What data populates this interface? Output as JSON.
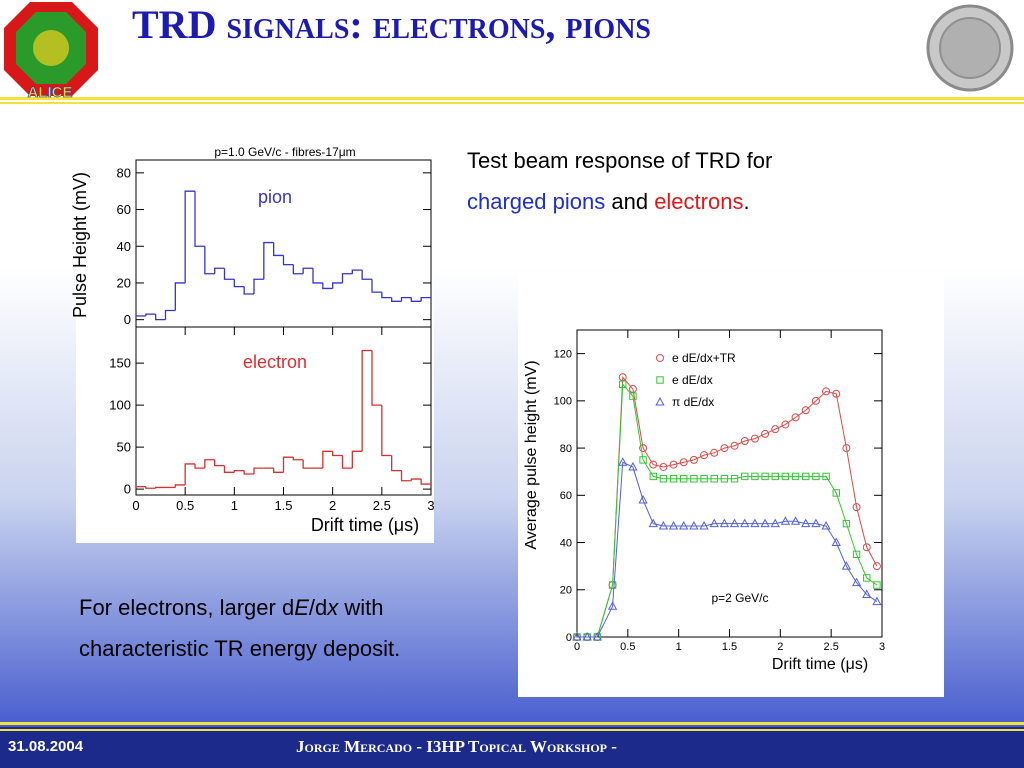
{
  "header": {
    "title": "TRD signals: electrons, pions",
    "logo": "ALICE"
  },
  "body": {
    "intro": [
      "Test beam response of TRD for",
      "charged pions",
      "and",
      "electrons",
      "."
    ],
    "note": [
      "For electrons, larger d",
      "E",
      "/d",
      "x",
      " with characteristic TR energy deposit."
    ]
  },
  "footer": {
    "date": "31.08.2004",
    "text": "Jorge Mercado  -  I3HP Topical Workshop  -"
  },
  "chart_data": [
    {
      "type": "histogram",
      "title": "p=1.0 GeV/c - fibres-17μm",
      "y_label": "Pulse Height (mV)",
      "bins": [
        0,
        0.1,
        0.2,
        0.3,
        0.4,
        0.5,
        0.6,
        0.7,
        0.8,
        0.9,
        1.0,
        1.1,
        1.2,
        1.3,
        1.4,
        1.5,
        1.6,
        1.7,
        1.8,
        1.9,
        2.0,
        2.1,
        2.2,
        2.3,
        2.4,
        2.5,
        2.6,
        2.7,
        2.8,
        2.9,
        3.0
      ],
      "series": [
        {
          "name": "pion",
          "color": "#3535c8",
          "values": [
            2,
            3,
            0,
            5,
            20,
            70,
            40,
            25,
            28,
            22,
            18,
            14,
            22,
            42,
            35,
            30,
            25,
            28,
            20,
            17,
            20,
            25,
            27,
            22,
            15,
            12,
            10,
            12,
            10,
            12
          ]
        }
      ],
      "xlim": [
        0,
        3
      ],
      "ylim": [
        -4,
        87
      ],
      "yticks": [
        0,
        20,
        40,
        60,
        80
      ]
    },
    {
      "type": "histogram",
      "x_label": "Drift time (μs)",
      "bins": [
        0,
        0.1,
        0.2,
        0.3,
        0.4,
        0.5,
        0.6,
        0.7,
        0.8,
        0.9,
        1.0,
        1.1,
        1.2,
        1.3,
        1.4,
        1.5,
        1.6,
        1.7,
        1.8,
        1.9,
        2.0,
        2.1,
        2.2,
        2.3,
        2.4,
        2.5,
        2.6,
        2.7,
        2.8,
        2.9,
        3.0
      ],
      "series": [
        {
          "name": "electron",
          "color": "#d83030",
          "values": [
            3,
            1,
            2,
            2,
            5,
            30,
            25,
            35,
            28,
            20,
            22,
            18,
            25,
            25,
            20,
            38,
            35,
            25,
            25,
            45,
            40,
            25,
            45,
            165,
            100,
            40,
            22,
            10,
            12,
            6
          ]
        }
      ],
      "xlim": [
        0,
        3
      ],
      "ylim": [
        -7,
        193
      ],
      "yticks": [
        0,
        50,
        100,
        150
      ],
      "xticks": [
        0,
        0.5,
        1,
        1.5,
        2,
        2.5,
        3
      ]
    },
    {
      "type": "line",
      "x_label": "Drift time (μs)",
      "y_label": "Average pulse height (mV)",
      "annotation": "p=2 GeV/c",
      "x": [
        0,
        0.1,
        0.2,
        0.35,
        0.45,
        0.55,
        0.65,
        0.75,
        0.85,
        0.95,
        1.05,
        1.15,
        1.25,
        1.35,
        1.45,
        1.55,
        1.65,
        1.75,
        1.85,
        1.95,
        2.05,
        2.15,
        2.25,
        2.35,
        2.45,
        2.55,
        2.65,
        2.75,
        2.85,
        2.95
      ],
      "series": [
        {
          "name": "e dE/dx+TR",
          "color": "#e04848",
          "marker": "circle",
          "values": [
            0,
            0,
            0,
            22,
            110,
            105,
            80,
            73,
            72,
            73,
            74,
            75,
            77,
            78,
            80,
            81,
            83,
            84,
            86,
            88,
            90,
            93,
            96,
            100,
            104,
            103,
            80,
            55,
            38,
            30
          ]
        },
        {
          "name": "e dE/dx",
          "color": "#30c830",
          "marker": "square",
          "values": [
            0,
            0,
            0,
            22,
            107,
            102,
            75,
            68,
            67,
            67,
            67,
            67,
            67,
            67,
            67,
            67,
            68,
            68,
            68,
            68,
            68,
            68,
            68,
            68,
            68,
            61,
            48,
            35,
            25,
            22
          ]
        },
        {
          "name": "π dE/dx",
          "color": "#5060e0",
          "marker": "triangle",
          "values": [
            0,
            0,
            0,
            13,
            74,
            72,
            58,
            48,
            47,
            47,
            47,
            47,
            47,
            48,
            48,
            48,
            48,
            48,
            48,
            48,
            49,
            49,
            48,
            48,
            47,
            40,
            30,
            23,
            18,
            15
          ]
        }
      ],
      "xlim": [
        0,
        3
      ],
      "ylim": [
        0,
        130
      ],
      "xticks": [
        0,
        0.5,
        1,
        1.5,
        2,
        2.5,
        3
      ],
      "yticks": [
        0,
        20,
        40,
        60,
        80,
        100,
        120
      ],
      "legend": "upper right"
    }
  ]
}
